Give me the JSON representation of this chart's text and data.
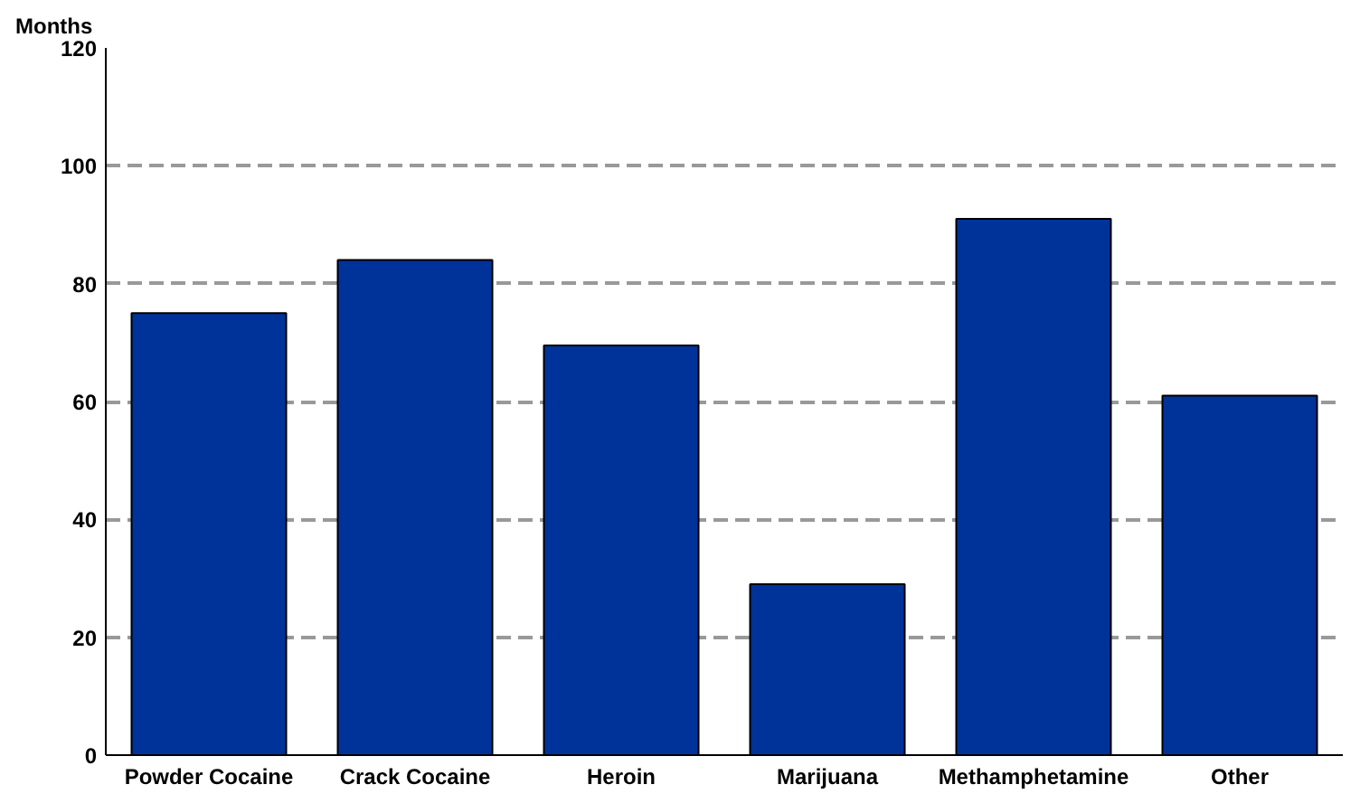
{
  "chart_data": {
    "type": "bar",
    "ylabel": "Months",
    "categories": [
      "Powder Cocaine",
      "Crack Cocaine",
      "Heroin",
      "Marijuana",
      "Methamphetamine",
      "Other"
    ],
    "values": [
      75,
      84,
      69.5,
      29,
      91,
      61
    ],
    "color": "#003399",
    "ylim": [
      0,
      120
    ],
    "yticks": [
      0,
      20,
      40,
      60,
      80,
      100,
      120
    ],
    "grid": "y"
  }
}
